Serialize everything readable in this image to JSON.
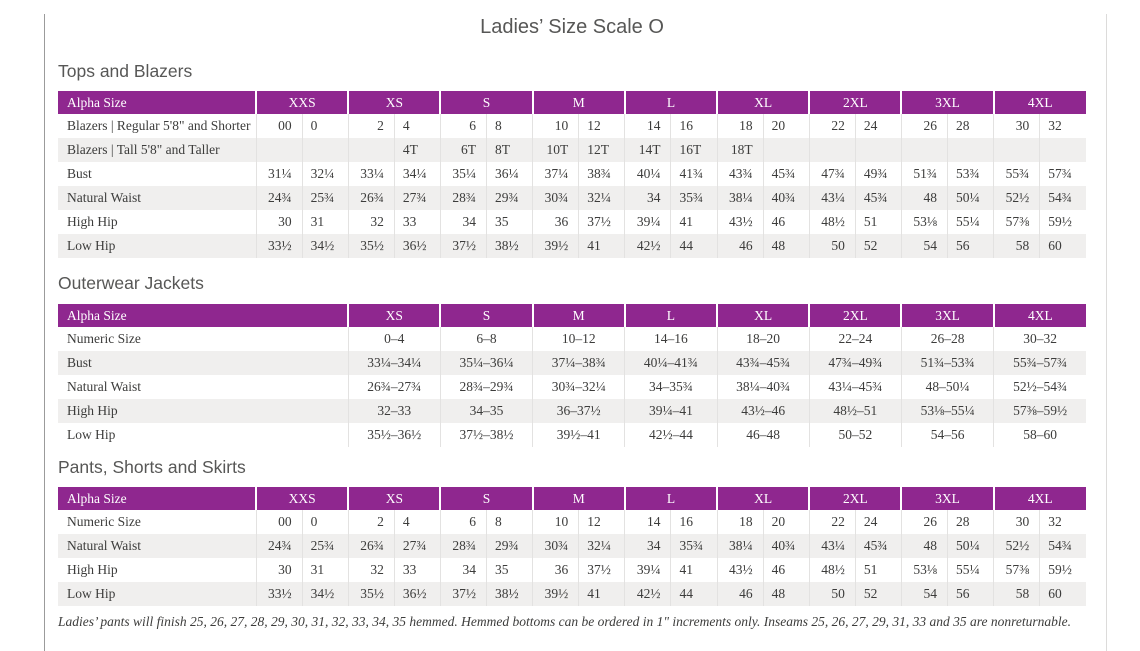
{
  "page": {
    "title": "Ladies’ Size Scale O",
    "footnote": "Ladies’ pants will finish 25, 26, 27, 28, 29, 30, 31, 32, 33, 34, 35 hemmed. Hemmed bottoms can be ordered in 1\" increments only. Inseams 25, 26, 27, 29, 31, 33 and 35 are nonreturnable."
  },
  "colors": {
    "header_purple": "#8f278f",
    "stripe": "#f0efee"
  },
  "tables": [
    {
      "title": "Tops and Blazers",
      "type": "split",
      "header": [
        "Alpha Size",
        "XXS",
        "XS",
        "S",
        "M",
        "L",
        "XL",
        "2XL",
        "3XL",
        "4XL"
      ],
      "rows": [
        {
          "label": "Blazers  |  Regular 5'8\" and Shorter",
          "pairs": [
            [
              "00",
              "0"
            ],
            [
              "2",
              "4"
            ],
            [
              "6",
              "8"
            ],
            [
              "10",
              "12"
            ],
            [
              "14",
              "16"
            ],
            [
              "18",
              "20"
            ],
            [
              "22",
              "24"
            ],
            [
              "26",
              "28"
            ],
            [
              "30",
              "32"
            ]
          ]
        },
        {
          "label": "Blazers  |  Tall 5'8\" and Taller",
          "pairs": [
            [
              "",
              ""
            ],
            [
              "",
              "4T"
            ],
            [
              "6T",
              "8T"
            ],
            [
              "10T",
              "12T"
            ],
            [
              "14T",
              "16T"
            ],
            [
              "18T",
              ""
            ],
            [
              "",
              ""
            ],
            [
              "",
              ""
            ],
            [
              "",
              ""
            ]
          ]
        },
        {
          "label": "Bust",
          "pairs": [
            [
              "31¼",
              "32¼"
            ],
            [
              "33¼",
              "34¼"
            ],
            [
              "35¼",
              "36¼"
            ],
            [
              "37¼",
              "38¾"
            ],
            [
              "40¼",
              "41¾"
            ],
            [
              "43¾",
              "45¾"
            ],
            [
              "47¾",
              "49¾"
            ],
            [
              "51¾",
              "53¾"
            ],
            [
              "55¾",
              "57¾"
            ]
          ]
        },
        {
          "label": "Natural Waist",
          "pairs": [
            [
              "24¾",
              "25¾"
            ],
            [
              "26¾",
              "27¾"
            ],
            [
              "28¾",
              "29¾"
            ],
            [
              "30¾",
              "32¼"
            ],
            [
              "34",
              "35¾"
            ],
            [
              "38¼",
              "40¾"
            ],
            [
              "43¼",
              "45¾"
            ],
            [
              "48",
              "50¼"
            ],
            [
              "52½",
              "54¾"
            ]
          ]
        },
        {
          "label": "High Hip",
          "pairs": [
            [
              "30",
              "31"
            ],
            [
              "32",
              "33"
            ],
            [
              "34",
              "35"
            ],
            [
              "36",
              "37½"
            ],
            [
              "39¼",
              "41"
            ],
            [
              "43½",
              "46"
            ],
            [
              "48½",
              "51"
            ],
            [
              "53⅛",
              "55¼"
            ],
            [
              "57⅜",
              "59½"
            ]
          ]
        },
        {
          "label": "Low Hip",
          "pairs": [
            [
              "33½",
              "34½"
            ],
            [
              "35½",
              "36½"
            ],
            [
              "37½",
              "38½"
            ],
            [
              "39½",
              "41"
            ],
            [
              "42½",
              "44"
            ],
            [
              "46",
              "48"
            ],
            [
              "50",
              "52"
            ],
            [
              "54",
              "56"
            ],
            [
              "58",
              "60"
            ]
          ]
        }
      ]
    },
    {
      "title": "Outerwear Jackets",
      "type": "range",
      "header": [
        "Alpha Size",
        "XS",
        "S",
        "M",
        "L",
        "XL",
        "2XL",
        "3XL",
        "4XL"
      ],
      "rows": [
        {
          "label": "Numeric Size",
          "values": [
            "0–4",
            "6–8",
            "10–12",
            "14–16",
            "18–20",
            "22–24",
            "26–28",
            "30–32"
          ]
        },
        {
          "label": "Bust",
          "values": [
            "33¼–34¼",
            "35¼–36¼",
            "37¼–38¾",
            "40¼–41¾",
            "43¾–45¾",
            "47¾–49¾",
            "51¾–53¾",
            "55¾–57¾"
          ]
        },
        {
          "label": "Natural Waist",
          "values": [
            "26¾–27¾",
            "28¾–29¾",
            "30¾–32¼",
            "34–35¾",
            "38¼–40¾",
            "43¼–45¾",
            "48–50¼",
            "52½–54¾"
          ]
        },
        {
          "label": "High Hip",
          "values": [
            "32–33",
            "34–35",
            "36–37½",
            "39¼–41",
            "43½–46",
            "48½–51",
            "53⅛–55¼",
            "57⅜–59½"
          ]
        },
        {
          "label": "Low Hip",
          "values": [
            "35½–36½",
            "37½–38½",
            "39½–41",
            "42½–44",
            "46–48",
            "50–52",
            "54–56",
            "58–60"
          ]
        }
      ]
    },
    {
      "title": "Pants, Shorts and Skirts",
      "type": "split",
      "header": [
        "Alpha Size",
        "XXS",
        "XS",
        "S",
        "M",
        "L",
        "XL",
        "2XL",
        "3XL",
        "4XL"
      ],
      "rows": [
        {
          "label": "Numeric Size",
          "pairs": [
            [
              "00",
              "0"
            ],
            [
              "2",
              "4"
            ],
            [
              "6",
              "8"
            ],
            [
              "10",
              "12"
            ],
            [
              "14",
              "16"
            ],
            [
              "18",
              "20"
            ],
            [
              "22",
              "24"
            ],
            [
              "26",
              "28"
            ],
            [
              "30",
              "32"
            ]
          ]
        },
        {
          "label": "Natural Waist",
          "pairs": [
            [
              "24¾",
              "25¾"
            ],
            [
              "26¾",
              "27¾"
            ],
            [
              "28¾",
              "29¾"
            ],
            [
              "30¾",
              "32¼"
            ],
            [
              "34",
              "35¾"
            ],
            [
              "38¼",
              "40¾"
            ],
            [
              "43¼",
              "45¾"
            ],
            [
              "48",
              "50¼"
            ],
            [
              "52½",
              "54¾"
            ]
          ]
        },
        {
          "label": "High Hip",
          "pairs": [
            [
              "30",
              "31"
            ],
            [
              "32",
              "33"
            ],
            [
              "34",
              "35"
            ],
            [
              "36",
              "37½"
            ],
            [
              "39¼",
              "41"
            ],
            [
              "43½",
              "46"
            ],
            [
              "48½",
              "51"
            ],
            [
              "53⅛",
              "55¼"
            ],
            [
              "57⅜",
              "59½"
            ]
          ]
        },
        {
          "label": "Low Hip",
          "pairs": [
            [
              "33½",
              "34½"
            ],
            [
              "35½",
              "36½"
            ],
            [
              "37½",
              "38½"
            ],
            [
              "39½",
              "41"
            ],
            [
              "42½",
              "44"
            ],
            [
              "46",
              "48"
            ],
            [
              "50",
              "52"
            ],
            [
              "54",
              "56"
            ],
            [
              "58",
              "60"
            ]
          ]
        }
      ]
    }
  ]
}
